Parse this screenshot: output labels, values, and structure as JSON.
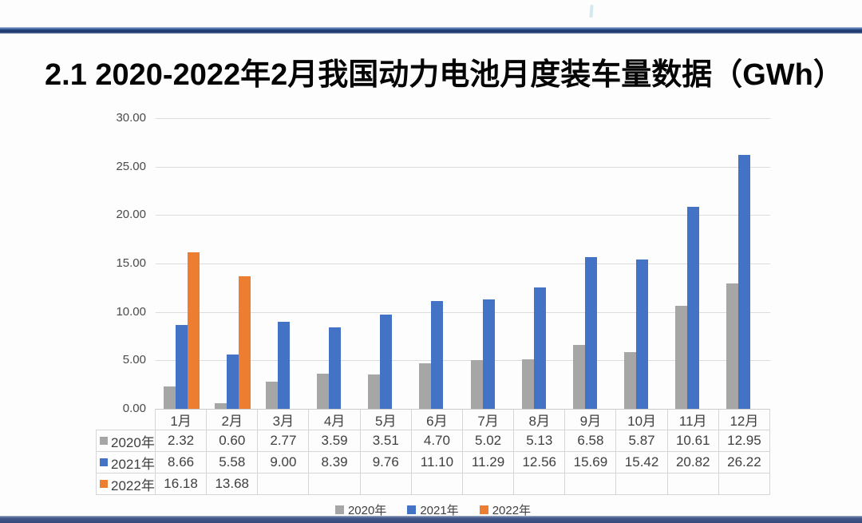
{
  "title": "2.1 2020-2022年2月我国动力电池月度装车量数据（GWh）",
  "chart_data": {
    "type": "bar",
    "title": "2.1 2020-2022年2月我国动力电池月度装车量数据（GWh）",
    "categories": [
      "1月",
      "2月",
      "3月",
      "4月",
      "5月",
      "6月",
      "7月",
      "8月",
      "9月",
      "10月",
      "11月",
      "12月"
    ],
    "series": [
      {
        "name": "2020年",
        "color": "#a6a6a6",
        "values": [
          2.32,
          0.6,
          2.77,
          3.59,
          3.51,
          4.7,
          5.02,
          5.13,
          6.58,
          5.87,
          10.61,
          12.95
        ]
      },
      {
        "name": "2021年",
        "color": "#4472c4",
        "values": [
          8.66,
          5.58,
          9.0,
          8.39,
          9.76,
          11.1,
          11.29,
          12.56,
          15.69,
          15.42,
          20.82,
          26.22
        ]
      },
      {
        "name": "2022年",
        "color": "#ed7d31",
        "values": [
          16.18,
          13.68,
          null,
          null,
          null,
          null,
          null,
          null,
          null,
          null,
          null,
          null
        ]
      }
    ],
    "ylim": [
      0,
      30
    ],
    "ytick_labels": [
      "0.00",
      "5.00",
      "10.00",
      "15.00",
      "20.00",
      "25.00",
      "30.00"
    ],
    "grid": true,
    "legend_position": "bottom",
    "data_table_shown": true
  },
  "colors": {
    "accent_navy": "#24437c",
    "grid_line": "#dcdcdc",
    "table_border": "#d6d6d6",
    "axis_text": "#4a4a4a",
    "table_text": "#3f3f3f"
  }
}
